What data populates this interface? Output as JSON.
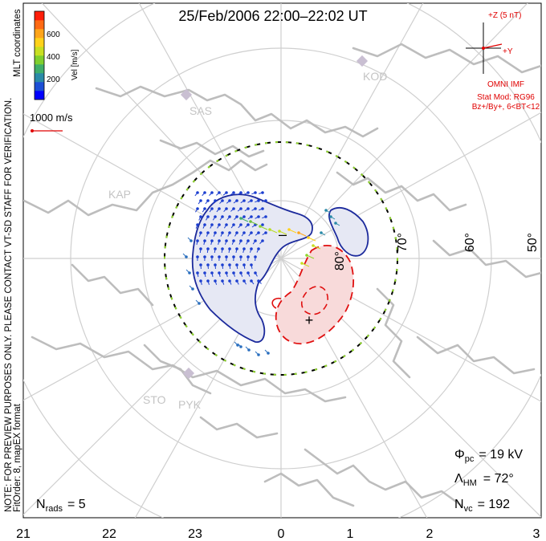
{
  "title": "25/Feb/2006 22:00–22:02 UT",
  "watermark": "NOTE: FOR PREVIEW PURPOSES ONLY. PLEASE CONTACT VT-SD STAFF FOR VERIFICATION.",
  "fit_info": "FitOrder: 8, mapEX format",
  "coords": "MLT coordinates",
  "colorbar": {
    "label": "Vel [m/s]",
    "ticks": [
      "600",
      "400",
      "200"
    ],
    "colors": [
      "#0000ff",
      "#1c4fd6",
      "#2a8aa8",
      "#3fae6a",
      "#7fcf2e",
      "#c8df22",
      "#ffd21a",
      "#ffa51a",
      "#ff6a14",
      "#ff1e0a"
    ]
  },
  "scale_vector": {
    "label": "1000 m/s",
    "color": "#e00000"
  },
  "imf": {
    "scale_label": "+Z (5 nT)",
    "y_label": "+Y",
    "source": "OMNI IMF",
    "model": "Stat Mod: RG96",
    "condition": "Bz+/By+, 6<BT<12"
  },
  "radars": [
    "KOD",
    "SAS",
    "KAP",
    "STO",
    "PYK"
  ],
  "latitude_labels": [
    "80°",
    "70°",
    "60°",
    "50°"
  ],
  "mlt_labels": [
    "21",
    "22",
    "23",
    "0",
    "1",
    "2",
    "3"
  ],
  "potential_marks": {
    "min": "–",
    "max": "+"
  },
  "stats": {
    "phi_pc": {
      "symbol": "Φ",
      "sub": "pc",
      "value": "= 19 kV"
    },
    "lambda_hm": {
      "symbol": "Λ",
      "sub": "HM",
      "value": "= 72°"
    },
    "n_vc": {
      "symbol": "N",
      "sub": "vc",
      "value": "= 192"
    },
    "n_rads": {
      "symbol": "N",
      "sub": "rads",
      "value": "= 5"
    }
  },
  "colors": {
    "negative_cell": "#e6e8f4",
    "positive_cell": "#f8dada",
    "contour_negative": "#1c2a9c",
    "contour_positive": "#e01010",
    "grid": "#cfcfcf",
    "coast": "#bdbdbd"
  }
}
